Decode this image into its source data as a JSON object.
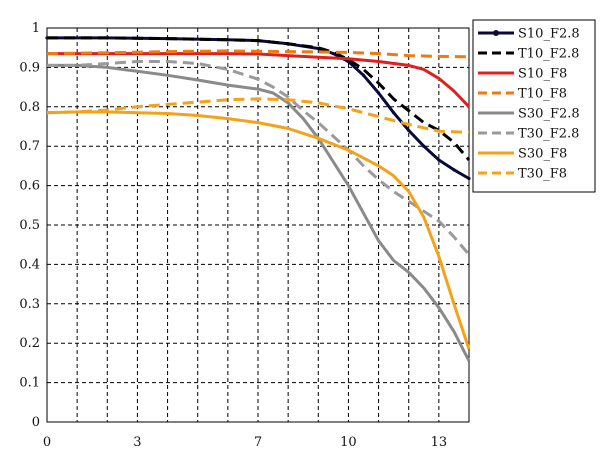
{
  "chart_data": {
    "type": "line",
    "xlim": [
      0,
      14
    ],
    "ylim": [
      0,
      1
    ],
    "x_ticks": [
      0,
      3,
      7,
      10,
      13
    ],
    "x_tick_labels": [
      "0",
      "3",
      "7",
      "10",
      "13"
    ],
    "y_ticks": [
      0,
      0.1,
      0.2,
      0.3,
      0.4,
      0.5,
      0.6,
      0.7,
      0.8,
      0.9,
      1
    ],
    "y_tick_labels": [
      "0",
      "0.1",
      "0.2",
      "0.3",
      "0.4",
      "0.5",
      "0.6",
      "0.7",
      "0.8",
      "0.9",
      "1"
    ],
    "grid": true,
    "legend_position": "right",
    "series": [
      {
        "name": "S10_F2.8",
        "color": "#0a0a3a",
        "dash": "solid",
        "marker": "dot",
        "x": [
          0,
          2,
          4,
          6,
          7,
          8,
          9,
          9.5,
          10,
          10.5,
          11,
          11.5,
          12,
          12.5,
          13,
          13.5,
          14
        ],
        "y": [
          0.975,
          0.975,
          0.973,
          0.97,
          0.968,
          0.96,
          0.948,
          0.935,
          0.915,
          0.88,
          0.835,
          0.785,
          0.74,
          0.7,
          0.665,
          0.64,
          0.618
        ]
      },
      {
        "name": "T10_F2.8",
        "color": "#000000",
        "dash": "dashed",
        "marker": "none",
        "x": [
          0,
          2,
          4,
          6,
          7,
          8,
          9,
          9.5,
          10,
          10.5,
          11,
          11.5,
          12,
          12.5,
          13,
          13.5,
          14
        ],
        "y": [
          0.975,
          0.975,
          0.973,
          0.97,
          0.968,
          0.96,
          0.95,
          0.938,
          0.92,
          0.895,
          0.86,
          0.82,
          0.79,
          0.76,
          0.74,
          0.71,
          0.665
        ]
      },
      {
        "name": "S10_F8",
        "color": "#e02020",
        "dash": "solid",
        "marker": "none",
        "x": [
          0,
          2,
          4,
          6,
          7,
          8,
          9,
          10,
          11,
          12,
          12.5,
          13,
          13.5,
          14
        ],
        "y": [
          0.935,
          0.935,
          0.935,
          0.935,
          0.934,
          0.93,
          0.926,
          0.922,
          0.915,
          0.905,
          0.895,
          0.872,
          0.84,
          0.8
        ]
      },
      {
        "name": "T10_F8",
        "color": "#f07a10",
        "dash": "dashed",
        "marker": "none",
        "x": [
          0,
          2,
          4,
          6,
          8,
          10,
          11,
          12,
          13,
          14
        ],
        "y": [
          0.935,
          0.937,
          0.94,
          0.942,
          0.94,
          0.938,
          0.935,
          0.93,
          0.928,
          0.927
        ]
      },
      {
        "name": "S30_F2.8",
        "color": "#8a8a8a",
        "dash": "solid",
        "marker": "none",
        "x": [
          0,
          1,
          2,
          3,
          4,
          5,
          6,
          7,
          7.5,
          8,
          8.5,
          9,
          9.5,
          10,
          10.5,
          11,
          11.5,
          12,
          12.5,
          13,
          13.5,
          14
        ],
        "y": [
          0.905,
          0.905,
          0.9,
          0.89,
          0.88,
          0.868,
          0.855,
          0.845,
          0.835,
          0.81,
          0.77,
          0.72,
          0.66,
          0.6,
          0.53,
          0.46,
          0.41,
          0.38,
          0.34,
          0.29,
          0.23,
          0.155
        ]
      },
      {
        "name": "T30_F2.8",
        "color": "#9a9a9a",
        "dash": "dashed",
        "marker": "none",
        "x": [
          0,
          1,
          2,
          3,
          4,
          5,
          6,
          7,
          7.5,
          8,
          8.5,
          9,
          9.5,
          10,
          10.5,
          11,
          11.5,
          12,
          12.5,
          13,
          13.5,
          14
        ],
        "y": [
          0.905,
          0.905,
          0.91,
          0.915,
          0.915,
          0.91,
          0.895,
          0.87,
          0.85,
          0.825,
          0.79,
          0.76,
          0.725,
          0.69,
          0.65,
          0.615,
          0.585,
          0.56,
          0.535,
          0.51,
          0.47,
          0.425
        ]
      },
      {
        "name": "S30_F8",
        "color": "#f4a21a",
        "dash": "solid",
        "marker": "none",
        "x": [
          0,
          1,
          2,
          3,
          4,
          5,
          6,
          7,
          8,
          9,
          10,
          11,
          11.5,
          12,
          12.5,
          13,
          13.5,
          14
        ],
        "y": [
          0.785,
          0.787,
          0.787,
          0.785,
          0.783,
          0.778,
          0.77,
          0.76,
          0.745,
          0.72,
          0.69,
          0.65,
          0.625,
          0.585,
          0.52,
          0.42,
          0.3,
          0.185
        ]
      },
      {
        "name": "T30_F8",
        "color": "#f4a21a",
        "dash": "dashed",
        "marker": "none",
        "x": [
          0,
          1,
          2,
          3,
          4,
          5,
          6,
          7,
          8,
          9,
          10,
          11,
          12,
          13,
          14
        ],
        "y": [
          0.785,
          0.787,
          0.792,
          0.8,
          0.806,
          0.812,
          0.818,
          0.82,
          0.818,
          0.81,
          0.795,
          0.775,
          0.755,
          0.738,
          0.735
        ]
      }
    ]
  }
}
